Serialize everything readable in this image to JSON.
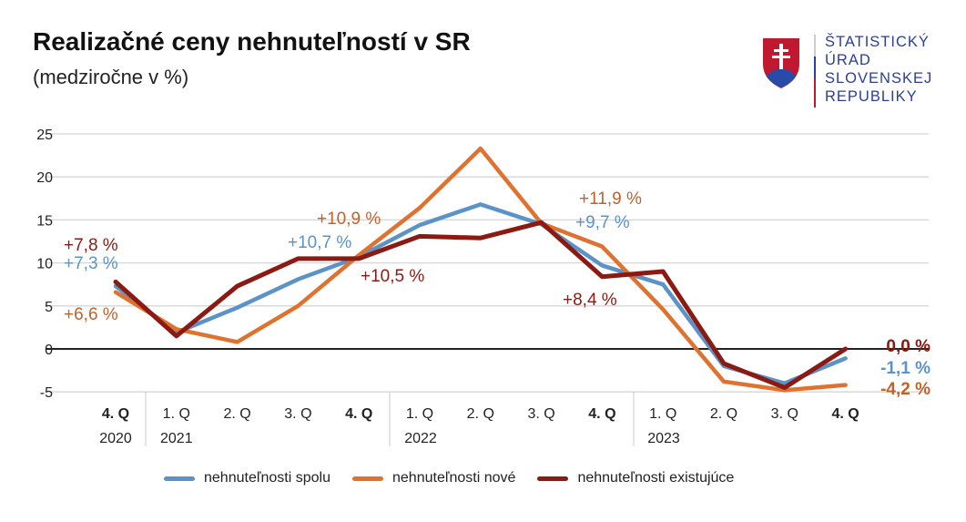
{
  "header": {
    "title": "Realizačné ceny nehnuteľností v SR",
    "subtitle": "(medziročne v %)"
  },
  "logo": {
    "lines": [
      "ŠTATISTICKÝ",
      "ÚRAD",
      "SLOVENSKEJ",
      "REPUBLIKY"
    ]
  },
  "chart_data": {
    "type": "line",
    "title": "Realizačné ceny nehnuteľností v SR",
    "subtitle": "(medziročne v %)",
    "categories": [
      "4. Q",
      "1. Q",
      "2. Q",
      "3. Q",
      "4. Q",
      "1. Q",
      "2. Q",
      "3. Q",
      "4. Q",
      "1. Q",
      "2. Q",
      "3. Q",
      "4. Q"
    ],
    "bold_categories": [
      0,
      4,
      8,
      12
    ],
    "years": [
      {
        "label": "2020",
        "index": 0
      },
      {
        "label": "2021",
        "index": 1
      },
      {
        "label": "2022",
        "index": 5
      },
      {
        "label": "2023",
        "index": 9
      }
    ],
    "ylim": [
      -5,
      25
    ],
    "yticks": [
      -5,
      0,
      5,
      10,
      15,
      20,
      25
    ],
    "grid": true,
    "legend_position": "bottom",
    "series": [
      {
        "name": "nehnuteľnosti spolu",
        "color": "#5b93c8",
        "values": [
          7.3,
          1.9,
          4.8,
          8.1,
          10.7,
          14.4,
          16.8,
          14.5,
          9.7,
          7.5,
          -2.0,
          -4.0,
          -1.1
        ]
      },
      {
        "name": "nehnuteľnosti nové",
        "color": "#e07230",
        "values": [
          6.6,
          2.3,
          0.8,
          5.0,
          10.9,
          16.4,
          23.3,
          14.6,
          11.9,
          4.6,
          -3.8,
          -4.8,
          -4.2
        ]
      },
      {
        "name": "nehnuteľnosti existujúce",
        "color": "#8b1a12",
        "values": [
          7.8,
          1.5,
          7.3,
          10.5,
          10.5,
          13.1,
          12.9,
          14.7,
          8.4,
          9.0,
          -1.7,
          -4.5,
          0.0
        ]
      }
    ],
    "annotations": [
      {
        "text": "+7,8 %",
        "color": "#8b1a12",
        "bold": false
      },
      {
        "text": "+7,3 %",
        "color": "#5b93c8",
        "bold": false
      },
      {
        "text": "+6,6 %",
        "color": "#c0622a",
        "bold": false
      },
      {
        "text": "+10,9 %",
        "color": "#c0622a",
        "bold": false
      },
      {
        "text": "+10,7 %",
        "color": "#5b93c8",
        "bold": false
      },
      {
        "text": "+10,5 %",
        "color": "#8b1a12",
        "bold": false
      },
      {
        "text": "+11,9 %",
        "color": "#c0622a",
        "bold": false
      },
      {
        "text": "+9,7 %",
        "color": "#5b93c8",
        "bold": false
      },
      {
        "text": "+8,4 %",
        "color": "#8b1a12",
        "bold": false
      },
      {
        "text": "0,0 %",
        "color": "#8b1a12",
        "bold": true
      },
      {
        "text": "-1,1 %",
        "color": "#5b93c8",
        "bold": true
      },
      {
        "text": "-4,2 %",
        "color": "#c0622a",
        "bold": true
      }
    ]
  }
}
